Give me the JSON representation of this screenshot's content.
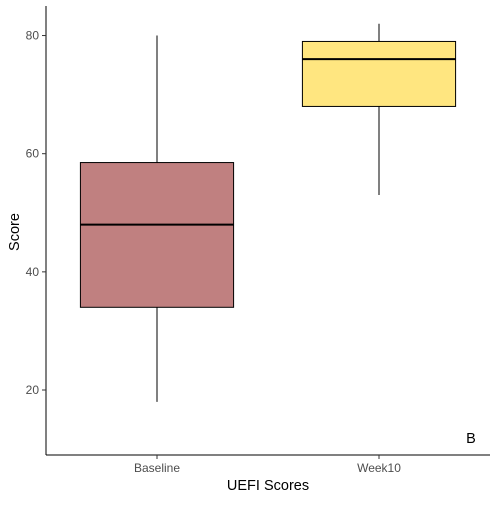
{
  "chart_data": {
    "type": "box",
    "title": "",
    "xlabel": "UEFI Scores",
    "ylabel": "Score",
    "categories": [
      "Baseline",
      "Week10"
    ],
    "boxes": [
      {
        "category": "Baseline",
        "min": 18,
        "q1": 34,
        "median": 48,
        "q3": 58.5,
        "max": 80,
        "color": "#C08080"
      },
      {
        "category": "Week10",
        "min": 53,
        "q1": 68,
        "median": 76,
        "q3": 79,
        "max": 82,
        "color": "#FFE680"
      }
    ],
    "ylim": [
      9,
      85
    ],
    "yticks": [
      20,
      40,
      60,
      80
    ],
    "grid": false,
    "legend": "none",
    "annotation": "B"
  }
}
